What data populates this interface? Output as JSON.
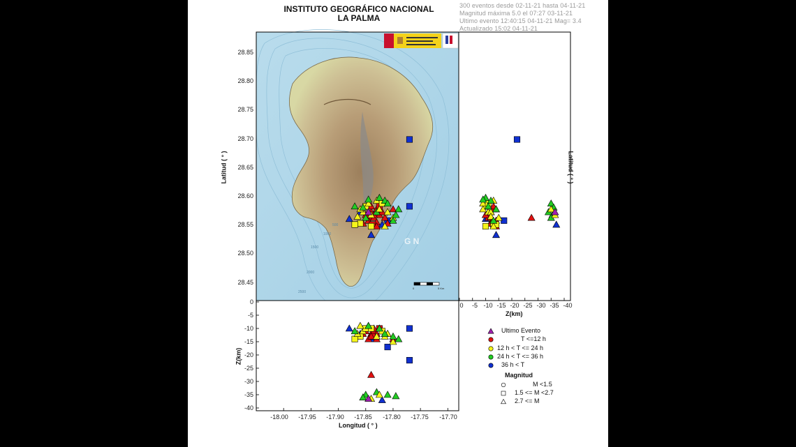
{
  "header": {
    "title_line1": "INSTITUTO GEOGRÁFICO NACIONAL",
    "title_line2": "LA PALMA",
    "info_lines": [
      "300 eventos desde 02-11-21  hasta 04-11-21",
      "Magnitud máxima 5.0 el 07:27 03-11-21",
      "Ultimo evento    12:40:15 04-11-21   Mag= 3.4",
      "Actualizado   15:02  04-11-21"
    ]
  },
  "map": {
    "latitude_ticks": [
      "28.85",
      "28.80",
      "28.75",
      "28.70",
      "28.65",
      "28.60",
      "28.55",
      "28.50",
      "28.45"
    ],
    "latitude_label": "Latitud ( ° )",
    "bathymetry_labels": [
      "500",
      "1000",
      "1500",
      "2000",
      "2500"
    ],
    "watermark": "G N",
    "scale_labels": [
      "0",
      "5 Km"
    ],
    "colors": {
      "sea": "#a9d3e8",
      "land_low": "#d8d8a4",
      "land_high": "#9c7f5c",
      "lava": "#8a8a8a"
    }
  },
  "depth_lat_panel": {
    "z_ticks": [
      "0",
      "-5",
      "-10",
      "-15",
      "-20",
      "-25",
      "-30",
      "-35",
      "-40"
    ],
    "z_label": "Z(km)",
    "latitude_label": "Latitud ( ° )"
  },
  "depth_lon_panel": {
    "z_ticks": [
      "0",
      "-5",
      "-10",
      "-15",
      "-20",
      "-25",
      "-30",
      "-35",
      "-40"
    ],
    "z_label": "Z(km)",
    "longitude_ticks": [
      "-18.00",
      "-17.95",
      "-17.90",
      "-17.85",
      "-17.80",
      "-17.75",
      "-17.70"
    ],
    "longitude_label": "Longitud ( ° )"
  },
  "legend": {
    "items": [
      {
        "label": "Ultimo Evento",
        "color": "#a020b0",
        "shape": "triangle"
      },
      {
        "label": "T <=12 h",
        "color": "#e01010",
        "shape": "circle"
      },
      {
        "label": "12 h  < T <= 24 h",
        "color": "#f5f51a",
        "shape": "circle"
      },
      {
        "label": "24 h  < T <= 36 h",
        "color": "#22cc22",
        "shape": "circle"
      },
      {
        "label": "36 h <  T",
        "color": "#1030d0",
        "shape": "circle"
      }
    ],
    "magnitude_title": "Magnitud",
    "magnitude_items": [
      {
        "label": "M <1.5",
        "shape": "circle"
      },
      {
        "label": "1.5 <= M <2.7",
        "shape": "square"
      },
      {
        "label": "2.7 <= M",
        "shape": "triangle"
      }
    ]
  },
  "events": {
    "colors": {
      "last": "#a020b0",
      "h12": "#e01010",
      "h24": "#f5f51a",
      "h36": "#22cc22",
      "old": "#1030d0"
    },
    "list": [
      {
        "lon": -17.77,
        "lat": 28.697,
        "z": -22,
        "cat": "old",
        "shape": "square"
      },
      {
        "lon": -17.77,
        "lat": 28.58,
        "z": -10,
        "cat": "old",
        "shape": "square"
      },
      {
        "lon": -17.88,
        "lat": 28.558,
        "z": -10,
        "cat": "old",
        "shape": "triangle"
      },
      {
        "lon": -17.84,
        "lat": 28.53,
        "z": -14,
        "cat": "old",
        "shape": "triangle"
      },
      {
        "lon": -17.81,
        "lat": 28.555,
        "z": -17,
        "cat": "old",
        "shape": "square"
      },
      {
        "lon": -17.86,
        "lat": 28.57,
        "z": -12,
        "cat": "old",
        "shape": "triangle"
      },
      {
        "lon": -17.82,
        "lat": 28.548,
        "z": -37,
        "cat": "old",
        "shape": "triangle"
      },
      {
        "lon": -17.84,
        "lat": 28.56,
        "z": -27.5,
        "cat": "h12",
        "shape": "triangle"
      },
      {
        "lon": -17.84,
        "lat": 28.57,
        "z": -12,
        "cat": "h12",
        "shape": "triangle"
      },
      {
        "lon": -17.835,
        "lat": 28.56,
        "z": -11,
        "cat": "h12",
        "shape": "triangle"
      },
      {
        "lon": -17.83,
        "lat": 28.575,
        "z": -13,
        "cat": "h12",
        "shape": "triangle"
      },
      {
        "lon": -17.825,
        "lat": 28.565,
        "z": -10,
        "cat": "h12",
        "shape": "triangle"
      },
      {
        "lon": -17.845,
        "lat": 28.555,
        "z": -14,
        "cat": "h12",
        "shape": "triangle"
      },
      {
        "lon": -17.83,
        "lat": 28.552,
        "z": -12,
        "cat": "h12",
        "shape": "triangle"
      },
      {
        "lon": -17.82,
        "lat": 28.57,
        "z": -11,
        "cat": "h12",
        "shape": "triangle"
      },
      {
        "lon": -17.838,
        "lat": 28.548,
        "z": -13,
        "cat": "h12",
        "shape": "square"
      },
      {
        "lon": -17.85,
        "lat": 28.565,
        "z": -11,
        "cat": "h12",
        "shape": "triangle"
      },
      {
        "lon": -17.815,
        "lat": 28.56,
        "z": -12,
        "cat": "h12",
        "shape": "triangle"
      },
      {
        "lon": -17.825,
        "lat": 28.58,
        "z": -10,
        "cat": "h12",
        "shape": "square"
      },
      {
        "lon": -17.8,
        "lat": 28.575,
        "z": -14,
        "cat": "h12",
        "shape": "triangle"
      },
      {
        "lon": -17.84,
        "lat": 28.58,
        "z": -13,
        "cat": "h12",
        "shape": "triangle"
      },
      {
        "lon": -17.855,
        "lat": 28.55,
        "z": -12,
        "cat": "h12",
        "shape": "triangle"
      },
      {
        "lon": -17.835,
        "lat": 28.565,
        "z": -10,
        "cat": "h12",
        "shape": "triangle"
      },
      {
        "lon": -17.83,
        "lat": 28.545,
        "z": -14,
        "cat": "h12",
        "shape": "triangle"
      },
      {
        "lon": -17.81,
        "lat": 28.55,
        "z": -12,
        "cat": "h12",
        "shape": "triangle"
      },
      {
        "lon": -17.86,
        "lat": 28.55,
        "z": -13,
        "cat": "h24",
        "shape": "square"
      },
      {
        "lon": -17.87,
        "lat": 28.548,
        "z": -14,
        "cat": "h24",
        "shape": "square"
      },
      {
        "lon": -17.855,
        "lat": 28.57,
        "z": -11,
        "cat": "h24",
        "shape": "triangle"
      },
      {
        "lon": -17.85,
        "lat": 28.58,
        "z": -10,
        "cat": "h24",
        "shape": "square"
      },
      {
        "lon": -17.845,
        "lat": 28.585,
        "z": -9,
        "cat": "h24",
        "shape": "triangle"
      },
      {
        "lon": -17.8,
        "lat": 28.56,
        "z": -15,
        "cat": "h24",
        "shape": "triangle"
      },
      {
        "lon": -17.81,
        "lat": 28.57,
        "z": -12,
        "cat": "h24",
        "shape": "triangle"
      },
      {
        "lon": -17.865,
        "lat": 28.562,
        "z": -12,
        "cat": "h24",
        "shape": "triangle"
      },
      {
        "lon": -17.84,
        "lat": 28.545,
        "z": -10,
        "cat": "h24",
        "shape": "square"
      },
      {
        "lon": -17.83,
        "lat": 28.59,
        "z": -13,
        "cat": "h24",
        "shape": "triangle"
      },
      {
        "lon": -17.82,
        "lat": 28.585,
        "z": -11,
        "cat": "h24",
        "shape": "square"
      },
      {
        "lon": -17.86,
        "lat": 28.575,
        "z": -9,
        "cat": "h24",
        "shape": "triangle"
      },
      {
        "lon": -17.815,
        "lat": 28.545,
        "z": -13,
        "cat": "h24",
        "shape": "triangle"
      },
      {
        "lon": -17.79,
        "lat": 28.575,
        "z": -14,
        "cat": "h36",
        "shape": "triangle"
      },
      {
        "lon": -17.815,
        "lat": 28.59,
        "z": -12,
        "cat": "h36",
        "shape": "triangle"
      },
      {
        "lon": -17.825,
        "lat": 28.595,
        "z": -10,
        "cat": "h36",
        "shape": "triangle"
      },
      {
        "lon": -17.87,
        "lat": 28.58,
        "z": -11,
        "cat": "h36",
        "shape": "triangle"
      },
      {
        "lon": -17.8,
        "lat": 28.555,
        "z": -13,
        "cat": "h36",
        "shape": "triangle"
      },
      {
        "lon": -17.845,
        "lat": 28.592,
        "z": -9,
        "cat": "h36",
        "shape": "triangle"
      },
      {
        "lon": -17.795,
        "lat": 28.565,
        "z": -35.5,
        "cat": "h36",
        "shape": "triangle"
      },
      {
        "lon": -17.83,
        "lat": 28.57,
        "z": -34,
        "cat": "h36",
        "shape": "triangle"
      },
      {
        "lon": -17.85,
        "lat": 28.56,
        "z": -35,
        "cat": "h36",
        "shape": "triangle"
      },
      {
        "lon": -17.81,
        "lat": 28.585,
        "z": -35,
        "cat": "h36",
        "shape": "triangle"
      },
      {
        "lon": -17.855,
        "lat": 28.578,
        "z": -36,
        "cat": "h36",
        "shape": "triangle"
      },
      {
        "lon": -17.84,
        "lat": 28.565,
        "z": -36.5,
        "cat": "h24",
        "shape": "triangle"
      },
      {
        "lon": -17.825,
        "lat": 28.575,
        "z": -35,
        "cat": "h24",
        "shape": "triangle"
      },
      {
        "lon": -17.845,
        "lat": 28.57,
        "z": -36.5,
        "cat": "last",
        "shape": "triangle"
      }
    ]
  }
}
